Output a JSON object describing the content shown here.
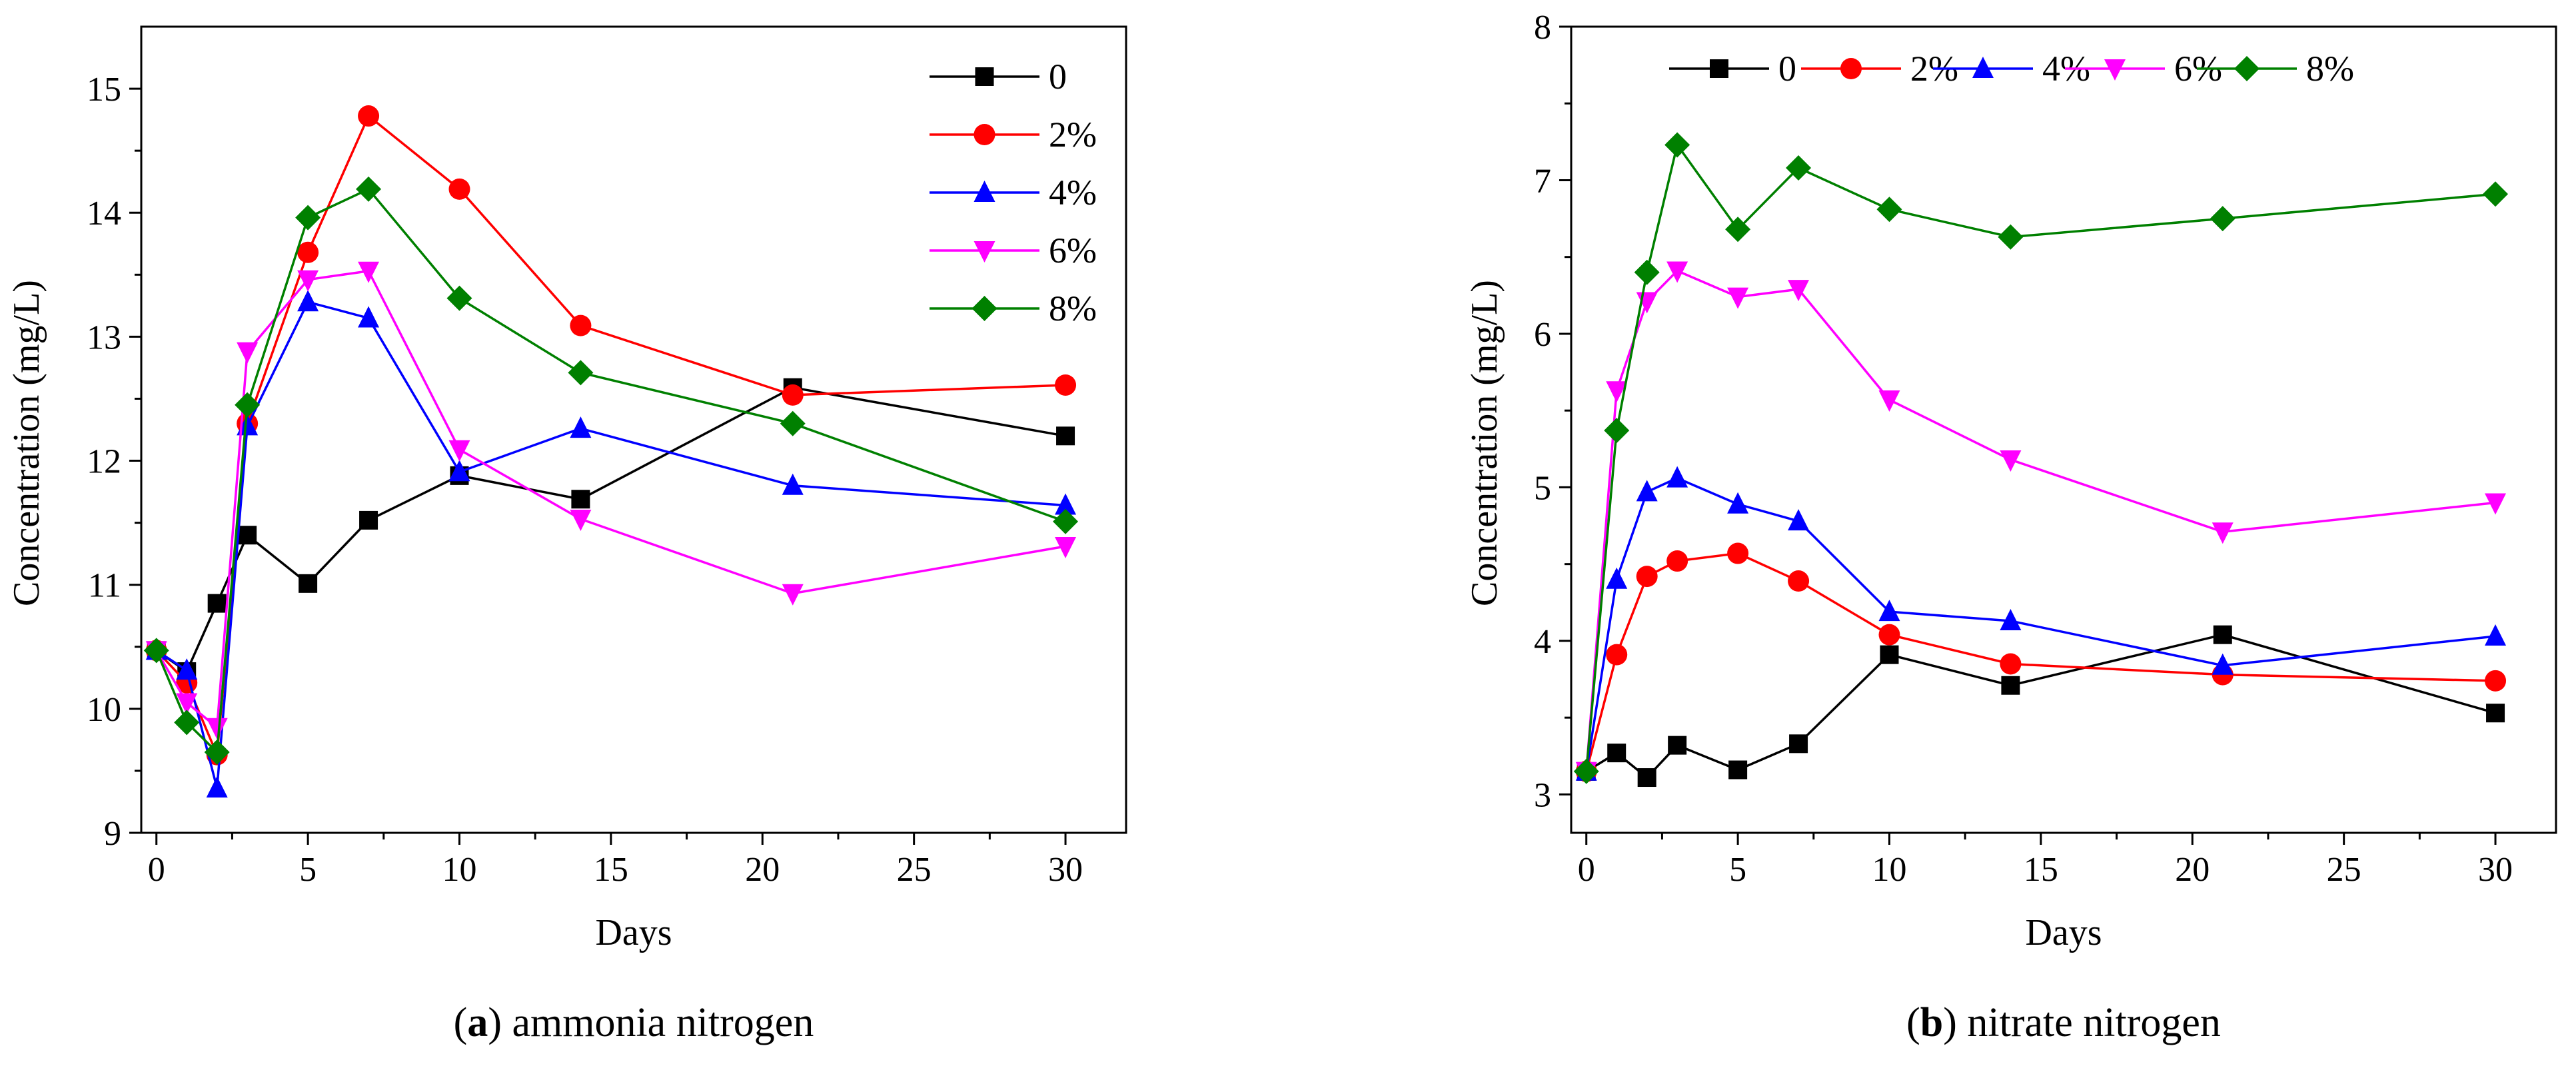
{
  "chart_data": [
    {
      "id": "a",
      "type": "line",
      "caption_letter": "a",
      "caption_text": " ammonia nitrogen",
      "caption_open": "(",
      "caption_close": ")",
      "xlabel": "Days",
      "ylabel": "Concentration (mg/L)",
      "xlim": [
        -0.5,
        32
      ],
      "ylim": [
        9,
        15.5
      ],
      "xticks": [
        0,
        5,
        10,
        15,
        20,
        25,
        30
      ],
      "yticks": [
        9,
        10,
        11,
        12,
        13,
        14,
        15
      ],
      "legend_position": "top-right",
      "legend_layout": "vertical",
      "x": [
        0,
        1,
        2,
        3,
        5,
        7,
        10,
        14,
        21,
        30
      ],
      "series": [
        {
          "name": "0",
          "color": "#000000",
          "marker": "square",
          "values": [
            10.47,
            10.3,
            10.85,
            11.4,
            11.01,
            11.52,
            11.88,
            11.69,
            12.59,
            12.2
          ]
        },
        {
          "name": "2%",
          "color": "#ff0000",
          "marker": "circle",
          "values": [
            10.47,
            10.21,
            9.63,
            12.3,
            13.68,
            14.78,
            14.19,
            13.09,
            12.53,
            12.61
          ]
        },
        {
          "name": "4%",
          "color": "#0000ff",
          "marker": "triangle-up",
          "values": [
            10.47,
            10.31,
            9.36,
            12.28,
            13.28,
            13.15,
            11.91,
            12.26,
            11.8,
            11.64
          ]
        },
        {
          "name": "6%",
          "color": "#ff00ff",
          "marker": "triangle-down",
          "values": [
            10.47,
            10.05,
            9.85,
            12.88,
            13.46,
            13.53,
            12.09,
            11.53,
            10.93,
            11.31
          ]
        },
        {
          "name": "8%",
          "color": "#008000",
          "marker": "diamond",
          "values": [
            10.47,
            9.89,
            9.65,
            12.45,
            13.96,
            14.19,
            13.31,
            12.71,
            12.3,
            11.51
          ]
        }
      ]
    },
    {
      "id": "b",
      "type": "line",
      "caption_letter": "b",
      "caption_text": " nitrate nitrogen",
      "caption_open": "(",
      "caption_close": ")",
      "xlabel": "Days",
      "ylabel": "Concentration (mg/L)",
      "xlim": [
        -0.5,
        32
      ],
      "ylim": [
        2.75,
        8
      ],
      "xticks": [
        0,
        5,
        10,
        15,
        20,
        25,
        30
      ],
      "yticks": [
        3,
        4,
        5,
        6,
        7,
        8
      ],
      "legend_position": "top",
      "legend_layout": "horizontal",
      "x": [
        0,
        1,
        2,
        3,
        5,
        7,
        10,
        14,
        21,
        30
      ],
      "series": [
        {
          "name": "0",
          "color": "#000000",
          "marker": "square",
          "values": [
            3.15,
            3.27,
            3.11,
            3.32,
            3.16,
            3.33,
            3.91,
            3.71,
            4.04,
            3.53
          ]
        },
        {
          "name": "2%",
          "color": "#ff0000",
          "marker": "circle",
          "values": [
            3.15,
            3.91,
            4.42,
            4.52,
            4.57,
            4.39,
            4.04,
            3.85,
            3.78,
            3.74
          ]
        },
        {
          "name": "4%",
          "color": "#0000ff",
          "marker": "triangle-up",
          "values": [
            3.15,
            4.4,
            4.97,
            5.06,
            4.89,
            4.78,
            4.19,
            4.13,
            3.84,
            4.03
          ]
        },
        {
          "name": "6%",
          "color": "#ff00ff",
          "marker": "triangle-down",
          "values": [
            3.15,
            5.63,
            6.21,
            6.41,
            6.24,
            6.29,
            5.57,
            5.18,
            4.71,
            4.9
          ]
        },
        {
          "name": "8%",
          "color": "#008000",
          "marker": "diamond",
          "values": [
            3.15,
            5.37,
            6.4,
            7.23,
            6.68,
            7.08,
            6.81,
            6.63,
            6.75,
            6.91
          ]
        }
      ]
    }
  ]
}
